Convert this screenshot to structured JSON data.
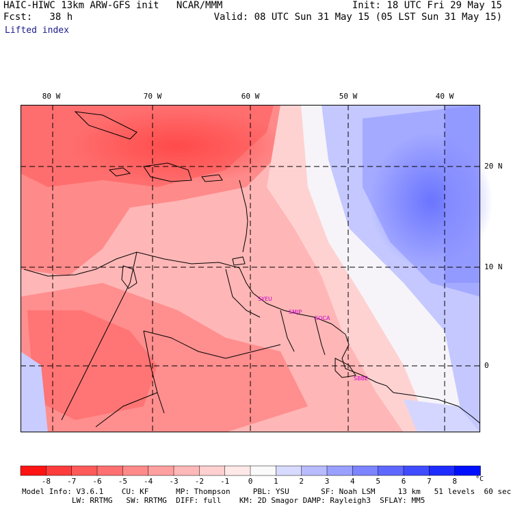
{
  "header": {
    "model_title": "HAIC-HIWC 13km ARW-GFS init",
    "org": "NCAR/MMM",
    "init": "Init: 18 UTC Fri 29 May 15",
    "forecast": "Fcst:   38 h",
    "valid": "Valid: 08 UTC Sun 31 May 15 (05 LST Sun 31 May 15)",
    "variable": "Lifted index"
  },
  "axes": {
    "lon_labels": [
      "80 W",
      "70 W",
      "60 W",
      "50 W",
      "40 W"
    ],
    "lat_labels": [
      "20 N",
      "10 N",
      "0"
    ]
  },
  "stations": [
    "SYEU",
    "SMJP",
    "SOCA",
    "SBBE"
  ],
  "colorbar": {
    "labels": [
      "-8",
      "-7",
      "-6",
      "-5",
      "-4",
      "-3",
      "-2",
      "-1",
      "0",
      "1",
      "2",
      "3",
      "4",
      "5",
      "6",
      "7",
      "8"
    ],
    "unit": "°C",
    "colors": [
      "#ff1414",
      "#ff3c3c",
      "#ff5a5a",
      "#ff7070",
      "#ff8a8a",
      "#ffa0a0",
      "#ffb8b8",
      "#ffd0d0",
      "#ffe8e8",
      "#fafafa",
      "#d8daff",
      "#b8bcff",
      "#9aa0ff",
      "#7c84ff",
      "#5e68ff",
      "#404cff",
      "#1e2cff",
      "#0010ff"
    ]
  },
  "footer": {
    "line1": "Model Info: V3.6.1    CU: KF      MP: Thompson     PBL: YSU       SF: Noah LSM     13 km   51 levels  60 sec",
    "line2": "           LW: RRTMG   SW: RRTMG  DIFF: full    KM: 2D Smagor DAMP: Rayleigh3  SFLAY: MM5"
  }
}
